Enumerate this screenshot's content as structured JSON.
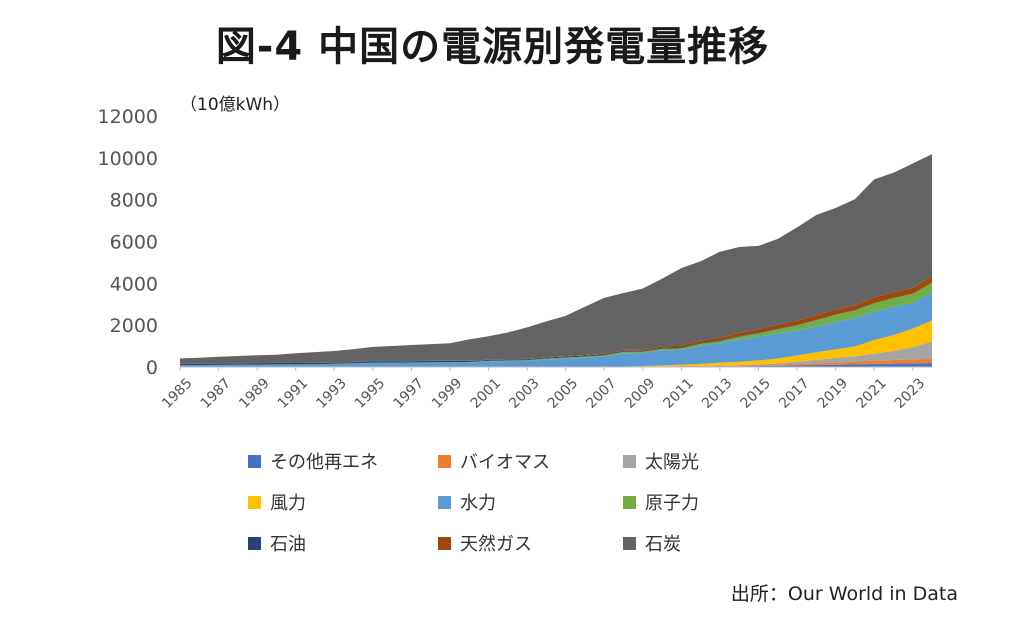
{
  "page": {
    "title": "図-4 中国の電源別発電量推移",
    "unit": "（10億kWh）",
    "source": "出所：Our World in Data"
  },
  "chart_data": {
    "type": "area",
    "stacked": true,
    "title": "図-4 中国の電源別発電量推移",
    "ylabel": "（10億kWh）",
    "xlabel": "",
    "ylim": [
      0,
      12000
    ],
    "xlim": [
      1985,
      2024
    ],
    "grid": false,
    "y_ticks": [
      0,
      2000,
      4000,
      6000,
      8000,
      10000,
      12000
    ],
    "y_tick_labels": [
      "0",
      "2000",
      "4000",
      "6000",
      "8000",
      "10000",
      "12000"
    ],
    "x_ticks": [
      1985,
      1987,
      1989,
      1991,
      1993,
      1995,
      1997,
      1999,
      2001,
      2003,
      2005,
      2007,
      2009,
      2011,
      2013,
      2015,
      2017,
      2019,
      2021,
      2023
    ],
    "x_tick_labels": [
      "1985",
      "1987",
      "1989",
      "1991",
      "1993",
      "1995",
      "1997",
      "1999",
      "2001",
      "2003",
      "2005",
      "2007",
      "2009",
      "2011",
      "2013",
      "2015",
      "2017",
      "2019",
      "2021",
      "2023"
    ],
    "x": [
      1985,
      1986,
      1987,
      1988,
      1989,
      1990,
      1991,
      1992,
      1993,
      1994,
      1995,
      1996,
      1997,
      1998,
      1999,
      2000,
      2001,
      2002,
      2003,
      2004,
      2005,
      2006,
      2007,
      2008,
      2009,
      2010,
      2011,
      2012,
      2013,
      2014,
      2015,
      2016,
      2017,
      2018,
      2019,
      2020,
      2021,
      2022,
      2023,
      2024
    ],
    "legend_position": "bottom",
    "series": [
      {
        "name": "その他再エネ",
        "color": "#4472c4",
        "values": [
          0,
          0,
          0,
          0,
          0,
          0,
          0,
          0,
          0,
          0,
          0,
          0,
          0,
          0,
          0,
          0,
          0,
          1,
          1,
          2,
          3,
          5,
          7,
          10,
          14,
          20,
          25,
          30,
          35,
          38,
          48,
          55,
          75,
          90,
          105,
          120,
          145,
          160,
          175,
          190
        ]
      },
      {
        "name": "バイオマス",
        "color": "#ed7d31",
        "values": [
          0,
          0,
          0,
          0,
          0,
          0,
          0,
          0,
          0,
          0,
          0,
          0,
          0,
          0,
          0,
          0,
          0,
          0,
          0,
          0,
          0,
          0,
          0,
          0,
          5,
          10,
          15,
          20,
          25,
          30,
          35,
          40,
          60,
          75,
          110,
          130,
          165,
          175,
          190,
          200
        ]
      },
      {
        "name": "太陽光",
        "color": "#a5a5a5",
        "values": [
          0,
          0,
          0,
          0,
          0,
          0,
          0,
          0,
          0,
          0,
          0,
          0,
          0,
          0,
          0,
          0,
          0,
          0,
          0,
          0,
          0,
          0,
          0,
          0,
          0,
          1,
          3,
          4,
          9,
          24,
          45,
          75,
          118,
          177,
          224,
          261,
          327,
          428,
          584,
          834
        ]
      },
      {
        "name": "風力",
        "color": "#ffc000",
        "values": [
          0,
          0,
          0,
          0,
          0,
          0,
          0,
          0,
          0,
          0,
          0,
          0,
          0,
          0,
          0,
          0,
          0,
          0,
          0,
          0,
          2,
          4,
          6,
          13,
          28,
          45,
          70,
          96,
          138,
          156,
          186,
          237,
          295,
          366,
          406,
          467,
          656,
          763,
          886,
          997
        ]
      },
      {
        "name": "水力",
        "color": "#5b9bd5",
        "values": [
          92,
          94,
          100,
          109,
          118,
          126,
          125,
          131,
          151,
          167,
          191,
          188,
          196,
          208,
          204,
          222,
          278,
          288,
          284,
          354,
          398,
          436,
          486,
          637,
          616,
          722,
          699,
          872,
          920,
          1064,
          1126,
          1193,
          1194,
          1232,
          1304,
          1355,
          1340,
          1352,
          1226,
          1354
        ]
      },
      {
        "name": "原子力",
        "color": "#70ad47",
        "values": [
          0,
          0,
          0,
          0,
          0,
          0,
          0,
          0,
          3,
          14,
          13,
          14,
          14,
          14,
          15,
          17,
          17,
          25,
          43,
          50,
          53,
          55,
          62,
          68,
          70,
          74,
          86,
          97,
          111,
          133,
          171,
          213,
          248,
          295,
          348,
          366,
          407,
          417,
          434,
          451
        ]
      },
      {
        "name": "石油",
        "color": "#264478",
        "values": [
          63,
          64,
          64,
          65,
          66,
          66,
          64,
          61,
          58,
          58,
          60,
          61,
          65,
          68,
          70,
          47,
          46,
          45,
          47,
          50,
          48,
          48,
          47,
          45,
          40,
          40,
          42,
          40,
          35,
          33,
          30,
          25,
          20,
          15,
          15,
          13,
          12,
          10,
          10,
          10
        ]
      },
      {
        "name": "天然ガス",
        "color": "#9e480e",
        "values": [
          2,
          2,
          2,
          3,
          3,
          3,
          3,
          3,
          3,
          4,
          4,
          4,
          5,
          6,
          8,
          10,
          12,
          13,
          14,
          16,
          19,
          24,
          35,
          43,
          58,
          77,
          97,
          110,
          126,
          145,
          169,
          191,
          202,
          223,
          232,
          247,
          274,
          272,
          283,
          303
        ]
      },
      {
        "name": "石炭",
        "color": "#636363",
        "values": [
          255,
          285,
          321,
          352,
          375,
          390,
          465,
          519,
          547,
          613,
          695,
          738,
          769,
          797,
          839,
          1025,
          1115,
          1280,
          1505,
          1709,
          1923,
          2311,
          2661,
          2723,
          2919,
          3233,
          3692,
          3785,
          4111,
          4115,
          3982,
          4094,
          4464,
          4795,
          4860,
          5062,
          5643,
          5710,
          5939,
          5840
        ]
      }
    ]
  }
}
